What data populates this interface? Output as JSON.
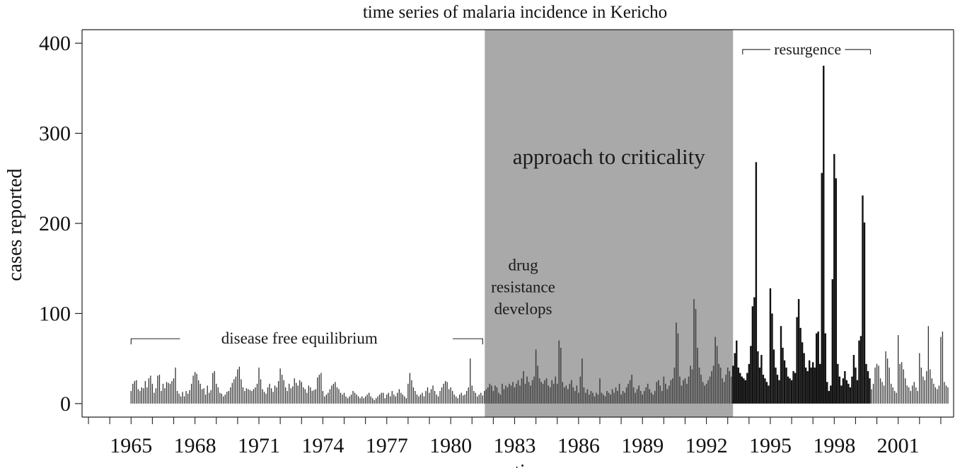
{
  "chart_data": {
    "type": "bar",
    "title": "time series of malaria incidence in Kericho",
    "xlabel": "time",
    "ylabel": "cases reported",
    "xlim": [
      1962.7,
      2003.6
    ],
    "ylim": [
      -15,
      415
    ],
    "x_ticks": [
      1965,
      1968,
      1971,
      1974,
      1977,
      1980,
      1983,
      1986,
      1989,
      1992,
      1995,
      1998,
      2001
    ],
    "y_ticks": [
      0,
      100,
      200,
      300,
      400
    ],
    "grid": false,
    "colors": {
      "equilibrium_bars": "#333333",
      "criticality_bars": "#444444",
      "resurgence_bars": "#111111",
      "shaded_region": "#a9a9a9",
      "axis": "#222222"
    },
    "regions": [
      {
        "label": "approach to criticality",
        "x_start": 1981.6,
        "x_end": 1993.25,
        "shaded": true
      }
    ],
    "annotations": {
      "disease_free": "disease free equilibrium",
      "drug_resistance": [
        "drug",
        "resistance",
        "develops"
      ],
      "resurgence": "resurgence"
    },
    "annotation_spans": {
      "disease_free": [
        1965.0,
        1981.5
      ],
      "resurgence": [
        1993.7,
        1999.7
      ]
    },
    "monthly_cases": [
      {
        "year": 1965,
        "values": [
          14,
          22,
          25,
          26,
          16,
          14,
          18,
          17,
          25,
          18,
          28,
          31
        ]
      },
      {
        "year": 1966,
        "values": [
          22,
          12,
          17,
          31,
          32,
          14,
          22,
          17,
          24,
          23,
          22,
          25
        ]
      },
      {
        "year": 1967,
        "values": [
          28,
          40,
          14,
          11,
          8,
          13,
          8,
          14,
          11,
          15,
          22,
          31
        ]
      },
      {
        "year": 1968,
        "values": [
          35,
          33,
          26,
          22,
          16,
          17,
          10,
          20,
          12,
          15,
          34,
          36
        ]
      },
      {
        "year": 1969,
        "values": [
          22,
          18,
          12,
          11,
          8,
          10,
          13,
          14,
          18,
          23,
          27,
          30
        ]
      },
      {
        "year": 1970,
        "values": [
          38,
          41,
          27,
          18,
          14,
          17,
          16,
          15,
          14,
          16,
          18,
          22
        ]
      },
      {
        "year": 1971,
        "values": [
          40,
          27,
          16,
          13,
          11,
          18,
          22,
          17,
          13,
          20,
          18,
          25
        ]
      },
      {
        "year": 1972,
        "values": [
          39,
          32,
          26,
          18,
          14,
          22,
          17,
          19,
          28,
          23,
          20,
          26
        ]
      },
      {
        "year": 1973,
        "values": [
          24,
          18,
          16,
          12,
          20,
          18,
          14,
          15,
          16,
          29,
          32,
          34
        ]
      },
      {
        "year": 1974,
        "values": [
          14,
          8,
          10,
          12,
          16,
          20,
          22,
          24,
          18,
          16,
          12,
          10
        ]
      },
      {
        "year": 1975,
        "values": [
          12,
          8,
          6,
          8,
          10,
          14,
          12,
          10,
          8,
          6,
          8,
          6
        ]
      },
      {
        "year": 1976,
        "values": [
          8,
          10,
          12,
          8,
          6,
          4,
          6,
          8,
          10,
          12,
          12,
          6
        ]
      },
      {
        "year": 1977,
        "values": [
          10,
          12,
          8,
          14,
          10,
          8,
          12,
          16,
          12,
          10,
          8,
          6
        ]
      },
      {
        "year": 1978,
        "values": [
          22,
          34,
          26,
          18,
          14,
          10,
          8,
          10,
          12,
          8,
          14,
          18
        ]
      },
      {
        "year": 1979,
        "values": [
          12,
          16,
          20,
          14,
          10,
          8,
          14,
          18,
          22,
          25,
          24,
          16
        ]
      },
      {
        "year": 1980,
        "values": [
          18,
          14,
          10,
          8,
          6,
          10,
          12,
          9,
          10,
          14,
          18,
          50
        ]
      },
      {
        "year": 1981,
        "values": [
          20,
          14,
          12,
          8,
          10,
          12,
          9,
          14,
          16,
          18,
          22,
          20
        ]
      },
      {
        "year": 1982,
        "values": [
          14,
          20,
          18,
          12,
          10,
          22,
          16,
          20,
          18,
          22,
          20,
          24
        ]
      },
      {
        "year": 1983,
        "values": [
          18,
          22,
          26,
          20,
          28,
          36,
          22,
          30,
          24,
          20,
          26,
          30
        ]
      },
      {
        "year": 1984,
        "values": [
          60,
          42,
          28,
          24,
          22,
          26,
          28,
          20,
          18,
          26,
          22,
          30
        ]
      },
      {
        "year": 1985,
        "values": [
          22,
          70,
          62,
          24,
          18,
          20,
          16,
          22,
          26,
          18,
          14,
          20
        ]
      },
      {
        "year": 1986,
        "values": [
          12,
          30,
          50,
          18,
          12,
          16,
          10,
          14,
          12,
          8,
          12,
          10
        ]
      },
      {
        "year": 1987,
        "values": [
          28,
          12,
          10,
          8,
          14,
          12,
          10,
          16,
          12,
          18,
          14,
          22
        ]
      },
      {
        "year": 1988,
        "values": [
          10,
          14,
          12,
          18,
          22,
          26,
          32,
          18,
          12,
          16,
          20,
          14
        ]
      },
      {
        "year": 1989,
        "values": [
          10,
          14,
          18,
          22,
          16,
          12,
          10,
          14,
          24,
          26,
          20,
          14
        ]
      },
      {
        "year": 1990,
        "values": [
          30,
          22,
          16,
          20,
          26,
          28,
          40,
          90,
          78,
          30,
          20,
          26
        ]
      },
      {
        "year": 1991,
        "values": [
          28,
          22,
          30,
          42,
          38,
          116,
          105,
          62,
          40,
          32,
          24,
          20
        ]
      },
      {
        "year": 1992,
        "values": [
          22,
          26,
          30,
          36,
          42,
          74,
          64,
          44,
          40,
          28,
          24,
          32
        ]
      },
      {
        "year": 1993,
        "values": [
          40,
          36,
          30,
          42,
          56,
          70,
          40,
          34,
          30,
          28,
          26,
          34
        ]
      },
      {
        "year": 1994,
        "values": [
          44,
          64,
          108,
          118,
          268,
          58,
          40,
          54,
          32,
          28,
          24,
          20
        ]
      },
      {
        "year": 1995,
        "values": [
          128,
          100,
          60,
          40,
          32,
          26,
          86,
          62,
          48,
          40,
          30,
          28
        ]
      },
      {
        "year": 1996,
        "values": [
          26,
          36,
          34,
          96,
          116,
          84,
          68,
          56,
          40,
          36,
          48,
          40
        ]
      },
      {
        "year": 1997,
        "values": [
          46,
          40,
          78,
          80,
          44,
          256,
          375,
          78,
          24,
          14,
          20,
          138
        ]
      },
      {
        "year": 1998,
        "values": [
          277,
          250,
          44,
          30,
          20,
          28,
          36,
          26,
          22,
          18,
          30,
          54
        ]
      },
      {
        "year": 1999,
        "values": [
          40,
          26,
          70,
          75,
          231,
          201,
          44,
          36,
          28,
          16,
          22,
          40
        ]
      },
      {
        "year": 2000,
        "values": [
          44,
          42,
          28,
          24,
          20,
          58,
          50,
          40,
          22,
          18,
          14,
          12
        ]
      },
      {
        "year": 2001,
        "values": [
          76,
          44,
          46,
          38,
          28,
          20,
          18,
          14,
          20,
          24,
          18,
          14
        ]
      },
      {
        "year": 2002,
        "values": [
          56,
          40,
          30,
          26,
          36,
          86,
          38,
          28,
          22,
          18,
          16,
          20
        ]
      },
      {
        "year": 2003,
        "values": [
          74,
          80,
          24,
          20,
          18
        ]
      }
    ]
  }
}
